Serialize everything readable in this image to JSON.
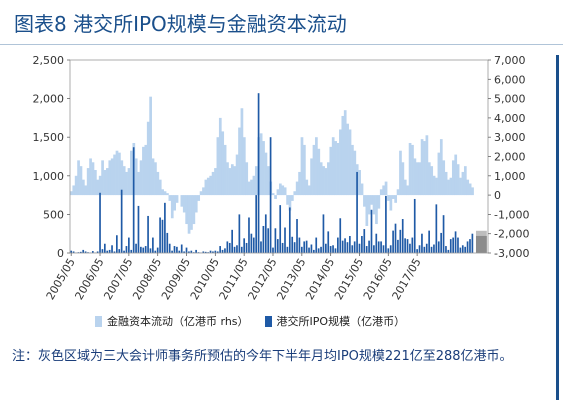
{
  "title": "图表8 港交所IPO规模与金融资本流动",
  "note": "注：灰色区域为三大会计师事务所预估的今年下半年月均IPO规模221亿至288亿港币。",
  "colors": {
    "bar": "#1f5aa6",
    "area": "#b9d3ee",
    "shade": "#8c8c8c",
    "title": "#1a4f8b",
    "note": "#1a3d7a"
  },
  "chart_data": {
    "type": "bar",
    "legend": [
      {
        "name": "金融资本流动（亿港币 rhs）",
        "color": "#b9d3ee"
      },
      {
        "name": "港交所IPO规模（亿港币）",
        "color": "#1f5aa6"
      }
    ],
    "x_tick_labels": [
      "2005/05",
      "2006/05",
      "2007/05",
      "2008/05",
      "2009/05",
      "2010/05",
      "2011/05",
      "2012/05",
      "2013/05",
      "2014/05",
      "2015/05",
      "2016/05",
      "2017/05"
    ],
    "left_axis": {
      "ylim": [
        0,
        2500
      ],
      "ticks": [
        0,
        500,
        1000,
        1500,
        2000,
        2500
      ],
      "tick_labels": [
        "0",
        "500",
        "1,000",
        "1,500",
        "2,000",
        "2,500"
      ]
    },
    "right_axis": {
      "ylim": [
        -3000,
        7000
      ],
      "ticks": [
        -3000,
        -2000,
        -1000,
        0,
        1000,
        2000,
        3000,
        4000,
        5000,
        6000,
        7000
      ],
      "tick_labels": [
        "-3,000",
        "-2,000",
        "-1,000",
        "0",
        "1,000",
        "2,000",
        "3,000",
        "4,000",
        "5,000",
        "6,000",
        "7,000"
      ]
    },
    "series": [
      {
        "name": "港交所IPO规模（亿港币）",
        "axis": "left",
        "values": [
          30,
          20,
          5,
          10,
          15,
          40,
          20,
          10,
          5,
          25,
          5,
          20,
          780,
          50,
          120,
          30,
          40,
          100,
          20,
          230,
          50,
          820,
          30,
          90,
          200,
          40,
          1370,
          120,
          610,
          80,
          70,
          90,
          480,
          60,
          200,
          30,
          70,
          460,
          430,
          650,
          260,
          120,
          30,
          90,
          80,
          30,
          110,
          20,
          70,
          20,
          30,
          10,
          40,
          10,
          5,
          20,
          15,
          10,
          30,
          20,
          30,
          20,
          90,
          40,
          60,
          150,
          130,
          300,
          80,
          100,
          500,
          80,
          190,
          130,
          460,
          250,
          200,
          750,
          2070,
          150,
          350,
          500,
          320,
          1500,
          70,
          320,
          180,
          620,
          130,
          330,
          80,
          590,
          210,
          140,
          440,
          200,
          80,
          150,
          160,
          70,
          110,
          40,
          200,
          60,
          80,
          500,
          120,
          280,
          90,
          100,
          60,
          200,
          450,
          160,
          190,
          140,
          220,
          100,
          150,
          1050,
          120,
          220,
          310,
          90,
          160,
          560,
          100,
          250,
          150,
          150,
          100,
          740,
          60,
          100,
          290,
          380,
          170,
          300,
          440,
          190,
          180,
          120,
          200,
          700,
          50,
          100,
          250,
          80,
          120,
          290,
          80,
          110,
          630,
          150,
          260,
          490,
          90,
          40,
          180,
          200,
          280,
          200,
          70,
          100,
          80,
          150,
          180,
          250
        ],
        "projected_range": [
          221,
          288
        ]
      },
      {
        "name": "金融资本流动（亿港币 rhs）",
        "axis": "right",
        "values": [
          200,
          500,
          1000,
          1800,
          1500,
          800,
          500,
          1400,
          1900,
          1700,
          1300,
          800,
          1000,
          1800,
          1300,
          1400,
          1800,
          1900,
          2100,
          2300,
          2200,
          1800,
          1500,
          1200,
          1400,
          2300,
          2700,
          1900,
          1200,
          1800,
          2500,
          2600,
          3800,
          5100,
          1900,
          1700,
          1200,
          800,
          300,
          200,
          100,
          -300,
          -1200,
          -800,
          -400,
          0,
          -600,
          -900,
          -1500,
          -2000,
          -1800,
          -1500,
          -900,
          -300,
          200,
          400,
          800,
          900,
          1000,
          1200,
          1400,
          3000,
          4000,
          3300,
          2600,
          1700,
          1400,
          1600,
          1500,
          2100,
          3500,
          4500,
          3000,
          1700,
          700,
          800,
          1000,
          1500,
          3000,
          3200,
          2800,
          2200,
          1500,
          700,
          100,
          -200,
          300,
          600,
          500,
          400,
          -500,
          -800,
          -300,
          200,
          700,
          1200,
          3000,
          2600,
          800,
          500,
          1900,
          2600,
          3000,
          2400,
          1700,
          1500,
          1400,
          1700,
          2500,
          3000,
          2800,
          2700,
          3400,
          4100,
          4400,
          3700,
          3400,
          2600,
          2300,
          1600,
          1300,
          600,
          -600,
          -1600,
          -1000,
          -500,
          -1000,
          -1500,
          -700,
          300,
          500,
          700,
          -300,
          -800,
          -200,
          -400,
          300,
          2300,
          1700,
          800,
          500,
          2700,
          2600,
          1900,
          1700,
          1700,
          2900,
          2800,
          3100,
          1700,
          1500,
          1000,
          900,
          2200,
          2900,
          1800,
          1200,
          800,
          900,
          1800,
          2100,
          1600,
          900,
          1200,
          1500,
          800,
          600,
          400
        ]
      }
    ],
    "grid": false
  }
}
